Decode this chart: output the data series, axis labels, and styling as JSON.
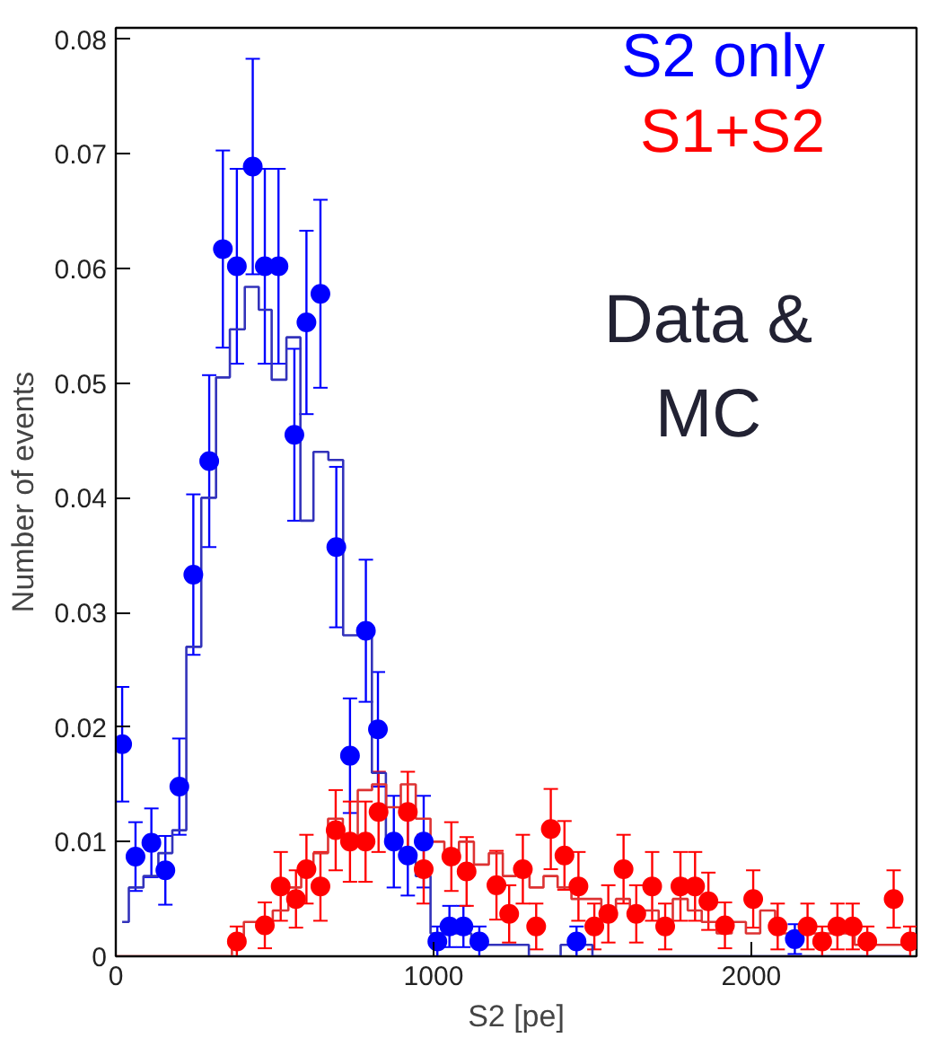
{
  "chart_data": {
    "type": "scatter",
    "xlabel": "S2 [pe]",
    "ylabel": "Number of events",
    "xlim": [
      0,
      2520
    ],
    "ylim": [
      0,
      0.081
    ],
    "xticks": [
      0,
      1000,
      2000
    ],
    "yticks": [
      0,
      0.01,
      0.02,
      0.03,
      0.04,
      0.05,
      0.06,
      0.07,
      0.08
    ],
    "grid": false,
    "legend": "top right",
    "annotations": [
      "Data &\nMC"
    ],
    "series": [
      {
        "type": "step",
        "color": "#3333bb",
        "x": [
          20,
          62,
          112,
          156,
          200,
          244,
          294,
          337,
          381,
          431,
          469,
          512,
          562,
          600,
          644,
          694,
          737,
          787,
          825,
          875,
          919,
          969,
          1012,
          1050,
          1094,
          1144,
          1250,
          1350,
          1450,
          1550,
          2500
        ],
        "values": [
          0.003,
          0.006,
          0.007,
          0.009,
          0.011,
          0.027,
          0.04,
          0.0505,
          0.0547,
          0.0584,
          0.0564,
          0.0503,
          0.054,
          0.038,
          0.044,
          0.0433,
          0.028,
          0.028,
          0.016,
          0.01,
          0.009,
          0.007,
          0.002,
          0.002,
          0.002,
          0.001,
          0.001,
          0,
          0.001,
          0,
          0
        ]
      },
      {
        "type": "step",
        "color": "#dd3333",
        "x": [
          0,
          350,
          381,
          425,
          469,
          519,
          567,
          600,
          644,
          692,
          737,
          786,
          827,
          875,
          919,
          969,
          1012,
          1056,
          1104,
          1150,
          1198,
          1238,
          1281,
          1323,
          1369,
          1412,
          1456,
          1506,
          1550,
          1598,
          1638,
          1688,
          1729,
          1777,
          1823,
          1865,
          1917,
          1960,
          2006,
          2050,
          2100,
          2150,
          2200,
          2250,
          2300,
          2350,
          2400,
          2450,
          2500
        ],
        "values": [
          0,
          0,
          0.001,
          0.003,
          0.003,
          0.004,
          0.006,
          0.0075,
          0.009,
          0.012,
          0.01,
          0.0145,
          0.015,
          0.013,
          0.015,
          0.012,
          0.01,
          0.009,
          0.01,
          0.008,
          0.009,
          0.007,
          0.008,
          0.006,
          0.007,
          0.006,
          0.005,
          0.005,
          0.004,
          0.005,
          0.004,
          0.004,
          0.003,
          0.005,
          0.004,
          0.003,
          0.002,
          0.003,
          0.002,
          0.004,
          0.002,
          0.002,
          0.002,
          0.002,
          0.002,
          0.001,
          0.001,
          0.001,
          0.001
        ]
      },
      {
        "marker": "circle",
        "name": "S2 only",
        "color": "#0000ff",
        "x": [
          20,
          62,
          112,
          156,
          200,
          244,
          294,
          337,
          381,
          431,
          469,
          512,
          562,
          600,
          644,
          694,
          737,
          787,
          825,
          875,
          919,
          969,
          1012,
          1050,
          1094,
          1144,
          1450,
          2137
        ],
        "values": [
          0.0185,
          0.0087,
          0.0099,
          0.0075,
          0.0148,
          0.0333,
          0.0432,
          0.0617,
          0.0602,
          0.0689,
          0.0602,
          0.0602,
          0.0455,
          0.0553,
          0.0578,
          0.0357,
          0.0175,
          0.0284,
          0.0198,
          0.01,
          0.0088,
          0.01,
          0.0013,
          0.0026,
          0.0026,
          0.0013,
          0.0013,
          0.0015
        ],
        "errors": [
          0.005,
          0.003,
          0.003,
          0.003,
          0.0042,
          0.007,
          0.0075,
          0.0086,
          0.0085,
          0.0094,
          0.0085,
          0.0085,
          0.0075,
          0.008,
          0.0082,
          0.007,
          0.005,
          0.0062,
          0.005,
          0.004,
          0.0035,
          0.004,
          0.0013,
          0.0018,
          0.0018,
          0.0013,
          0.0013,
          0.0013
        ]
      },
      {
        "marker": "circle",
        "name": "S1+S2",
        "color": "#ff0000",
        "x": [
          381,
          469,
          519,
          567,
          600,
          644,
          692,
          737,
          786,
          827,
          919,
          969,
          1056,
          1104,
          1198,
          1238,
          1281,
          1323,
          1369,
          1412,
          1456,
          1506,
          1550,
          1598,
          1638,
          1688,
          1729,
          1777,
          1823,
          1865,
          1917,
          2006,
          2083,
          2177,
          2223,
          2271,
          2319,
          2365,
          2448,
          2500
        ],
        "values": [
          0.0013,
          0.0027,
          0.0061,
          0.005,
          0.0076,
          0.0061,
          0.011,
          0.01,
          0.01,
          0.0126,
          0.0126,
          0.0076,
          0.0087,
          0.0074,
          0.0062,
          0.0037,
          0.0076,
          0.0026,
          0.0111,
          0.0088,
          0.0061,
          0.0026,
          0.0037,
          0.0076,
          0.0037,
          0.0061,
          0.0026,
          0.0061,
          0.0061,
          0.0048,
          0.0027,
          0.005,
          0.0026,
          0.0026,
          0.0013,
          0.0026,
          0.0026,
          0.0013,
          0.005,
          0.0013
        ],
        "errors": [
          0.0013,
          0.002,
          0.003,
          0.0025,
          0.003,
          0.003,
          0.0035,
          0.0035,
          0.0035,
          0.0035,
          0.0035,
          0.003,
          0.003,
          0.003,
          0.003,
          0.0025,
          0.003,
          0.002,
          0.0035,
          0.003,
          0.003,
          0.002,
          0.0025,
          0.003,
          0.0025,
          0.003,
          0.002,
          0.003,
          0.003,
          0.0025,
          0.002,
          0.0025,
          0.002,
          0.002,
          0.0013,
          0.002,
          0.002,
          0.0013,
          0.0025,
          0.0013
        ]
      }
    ]
  }
}
